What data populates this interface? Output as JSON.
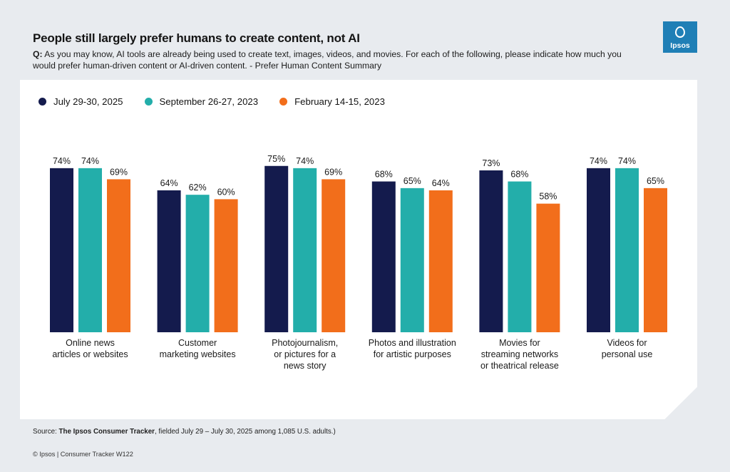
{
  "header": {
    "title": "People still largely prefer humans to create content, not AI",
    "question_prefix": "Q:",
    "question": " As you may know, AI tools are already being used to create text, images, videos, and movies. For each of the following, please indicate how much you would prefer human-driven content or AI-driven content. - Prefer Human Content Summary"
  },
  "logo": {
    "text": "Ipsos",
    "color": "#1f7fb6"
  },
  "chart_data": {
    "type": "bar",
    "title": "People still largely prefer humans to create content, not AI",
    "xlabel": "",
    "ylabel": "",
    "ylim": [
      0,
      100
    ],
    "grid": false,
    "legend_position": "top-left",
    "value_suffix": "%",
    "categories": [
      [
        "Online news",
        "articles or websites"
      ],
      [
        "Customer",
        "marketing websites"
      ],
      [
        "Photojournalism,",
        "or pictures for a",
        "news story"
      ],
      [
        "Photos and illustration",
        "for artistic purposes"
      ],
      [
        "Movies for",
        "streaming networks",
        "or theatrical release"
      ],
      [
        "Videos for",
        "personal use"
      ]
    ],
    "series": [
      {
        "name": "July 29-30, 2025",
        "color": "#141b4d",
        "values": [
          74,
          64,
          75,
          68,
          73,
          74
        ]
      },
      {
        "name": "September 26-27, 2023",
        "color": "#23aeaa",
        "values": [
          74,
          62,
          74,
          65,
          68,
          74
        ]
      },
      {
        "name": "February 14-15, 2023",
        "color": "#f26e1b",
        "values": [
          69,
          60,
          69,
          64,
          58,
          65
        ]
      }
    ]
  },
  "source": {
    "prefix": "Source: ",
    "bold": "The Ipsos Consumer Tracker",
    "rest": ", fielded July 29 – July 30, 2025 among 1,085 U.S. adults.)"
  },
  "footer": "© Ipsos | Consumer Tracker W122"
}
